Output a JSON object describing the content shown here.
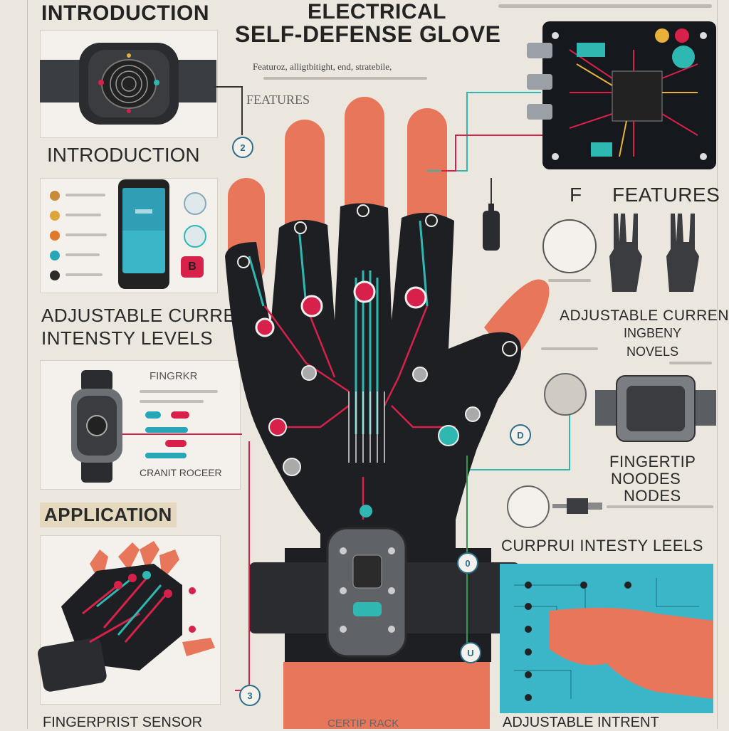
{
  "header": {
    "title_line1": "ELECTRICAL",
    "title_line2": "SELF-DEFENSE GLOVE",
    "subtitle": "Featuroz, аlligtbitight, end, stratebile,",
    "top_left_heading": "INTRODUCTION"
  },
  "labels": {
    "introduction": "INTRODUCTION",
    "features_small": "FEATURES",
    "features_big": "FEATURES",
    "features_prefix": "F",
    "adjustable_left_line1": "ADJUSTABLE CURRENT",
    "adjustable_left_line2": "INTENSTY LEVELS",
    "adjustable_right_line1": "ADJUSTABLE CURRENT",
    "adjustable_right_line2": "INGBENY",
    "adjustable_right_line3": "NOVELS",
    "fingertip_small": "FINGRKR",
    "circuit_rocker": "CRANIT ROCEER",
    "application": "APPLICATION",
    "fingertip_nodes_line1": "FINGERTIP",
    "fingertip_nodes_line2": "NOODES",
    "fingertip_nodes_line3": "NODES",
    "current_intensity": "CURPRUI INTESTY LEELS",
    "fingerprint_sensor": "FINGERPRIST SENSOR",
    "adjustable_bottom": "ADJUSTABLE INTRENT",
    "fingertip_bottom": "CERTIP RACK",
    "callout_2": "2",
    "callout_d": "D",
    "callout_0": "0",
    "callout_u": "U",
    "callout_3": "3",
    "phone_badge": "B"
  },
  "colors": {
    "background": "#ebe6de",
    "glove": "#1e1f22",
    "skin": "#e8765a",
    "circuit_red": "#d8214a",
    "circuit_teal": "#2fb8b2",
    "board": "#15181c",
    "screen_blue": "#3bb6c9"
  },
  "icons": [
    "watch-icon",
    "phone-icon",
    "circuit-board-icon",
    "glove-icon",
    "wristband-icon",
    "prong-icon",
    "hand-pointer-icon"
  ]
}
